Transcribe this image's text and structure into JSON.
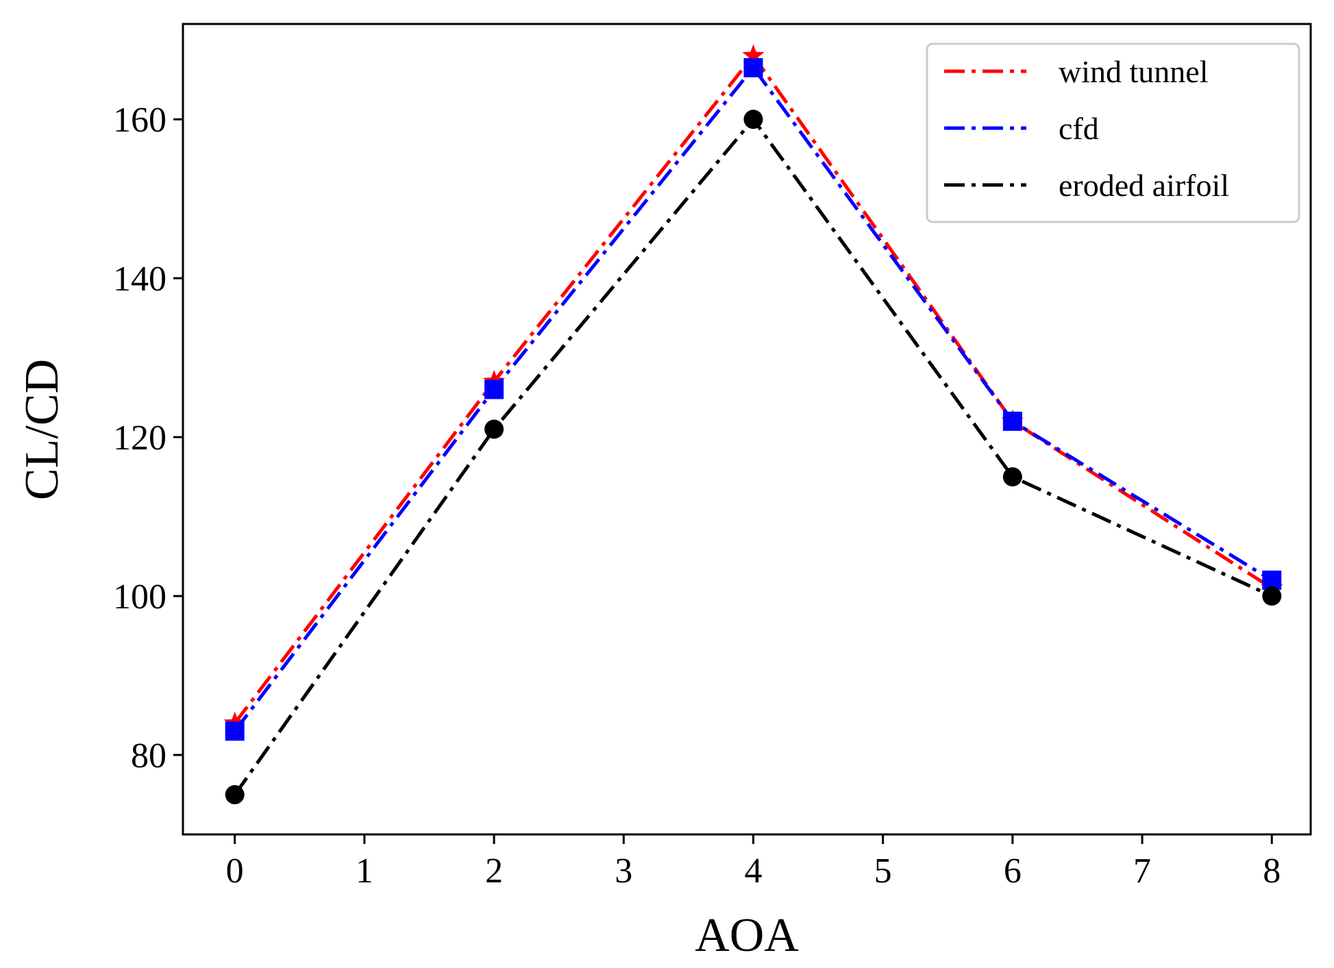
{
  "chart_data": {
    "type": "line",
    "title": "",
    "xlabel": "AOA",
    "ylabel": "CL/CD",
    "xlim": [
      -0.4,
      8.3
    ],
    "ylim": [
      70,
      172
    ],
    "xticks": [
      "0",
      "1",
      "2",
      "3",
      "4",
      "5",
      "6",
      "7",
      "8"
    ],
    "yticks": [
      "80",
      "100",
      "120",
      "140",
      "160"
    ],
    "grid": false,
    "legend_position": "top-right",
    "x": [
      0,
      2,
      4,
      6,
      8
    ],
    "series": [
      {
        "name": "wind tunnel",
        "color": "#ff0000",
        "marker": "star",
        "linestyle": "dashdot",
        "values": [
          84,
          127,
          168,
          122,
          101
        ]
      },
      {
        "name": "cfd",
        "color": "#0000ff",
        "marker": "square",
        "linestyle": "dashdot",
        "values": [
          83,
          126,
          166.5,
          122,
          102
        ]
      },
      {
        "name": "eroded airfoil",
        "color": "#000000",
        "marker": "circle",
        "linestyle": "dashdot",
        "values": [
          75,
          121,
          160,
          115,
          100
        ]
      }
    ]
  }
}
